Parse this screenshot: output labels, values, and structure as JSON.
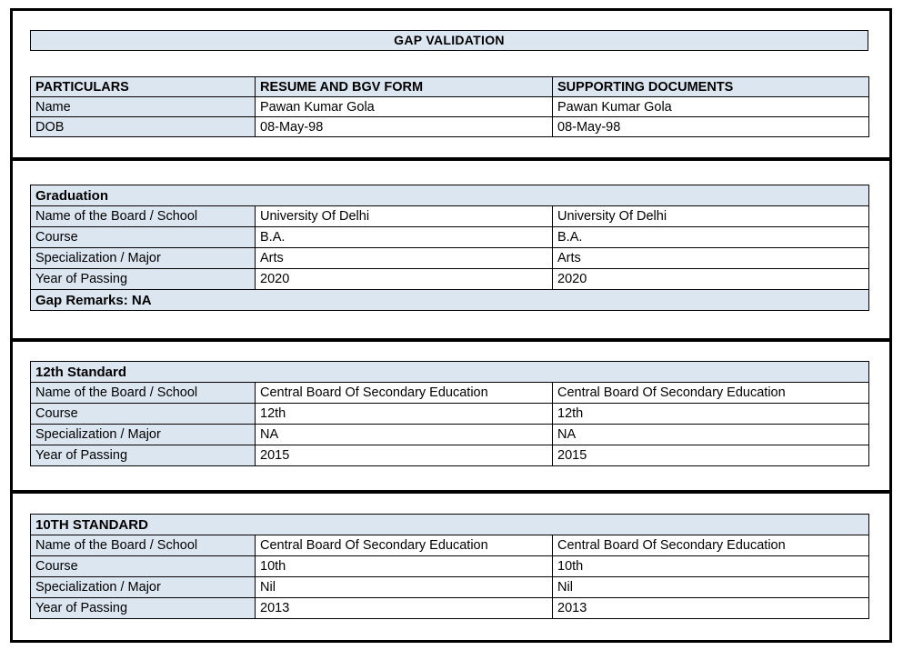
{
  "title_bar": {
    "text": "GAP VALIDATION"
  },
  "particulars": {
    "headers": [
      "PARTICULARS",
      "RESUME AND BGV FORM",
      "SUPPORTING DOCUMENTS"
    ],
    "rows": [
      [
        "Name",
        "Pawan Kumar Gola",
        "Pawan Kumar Gola"
      ],
      [
        "DOB",
        "08-May-98",
        "08-May-98"
      ]
    ]
  },
  "sections": [
    {
      "header": "Graduation",
      "rows": [
        [
          "Name of the Board / School",
          "University Of Delhi",
          "University Of Delhi"
        ],
        [
          "Course",
          "B.A.",
          "B.A."
        ],
        [
          "Specialization / Major",
          "Arts",
          "Arts"
        ],
        [
          "Year of Passing",
          "2020",
          "2020"
        ]
      ],
      "footer": "Gap Remarks: NA"
    },
    {
      "header": "12th Standard",
      "rows": [
        [
          "Name of the Board / School",
          "Central Board Of Secondary Education",
          "Central Board Of Secondary Education"
        ],
        [
          "Course",
          "12th",
          "12th"
        ],
        [
          "Specialization / Major",
          "NA",
          "NA"
        ],
        [
          "Year of Passing",
          "2015",
          "2015"
        ]
      ]
    },
    {
      "header": "10TH STANDARD",
      "rows": [
        [
          "Name of the Board / School",
          "Central Board Of Secondary Education",
          "Central Board Of Secondary Education"
        ],
        [
          "Course",
          "10th",
          "10th"
        ],
        [
          "Specialization / Major",
          "Nil",
          "Nil"
        ],
        [
          "Year of Passing",
          "2013",
          "2013"
        ]
      ]
    }
  ],
  "colors": {
    "header_bg": "#dce6f1",
    "cell_bg": "#ffffff",
    "border": "#000000",
    "text": "#000000"
  }
}
